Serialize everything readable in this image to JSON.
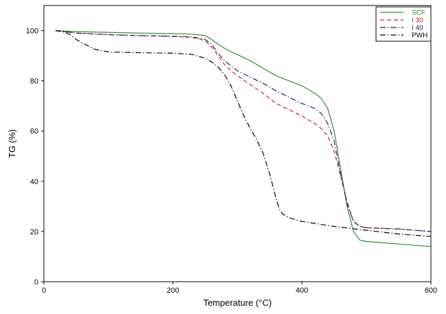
{
  "chart_data": {
    "type": "line",
    "title": "",
    "xlabel": "Temperature (°C)",
    "ylabel": "TG (%)",
    "xlim": [
      0,
      600
    ],
    "ylim": [
      0,
      110
    ],
    "xticks": [
      0,
      200,
      400,
      600
    ],
    "yticks": [
      0,
      20,
      40,
      60,
      80,
      100
    ],
    "grid": false,
    "legend_position": "top-right",
    "series": [
      {
        "name": "SCF",
        "color": "#2e8b2e",
        "dash": "solid",
        "label_color": "#2e8b2e",
        "x": [
          18,
          50,
          100,
          150,
          200,
          230,
          250,
          260,
          270,
          280,
          290,
          300,
          320,
          340,
          360,
          380,
          400,
          420,
          430,
          440,
          450,
          460,
          470,
          480,
          490,
          500,
          550,
          600
        ],
        "y": [
          100,
          99.6,
          99.3,
          99,
          98.8,
          98.6,
          98,
          96.5,
          94.5,
          93,
          91.5,
          90.5,
          88,
          85,
          82,
          80,
          78,
          75,
          73,
          69,
          60,
          45,
          30,
          20,
          16.5,
          16,
          15,
          14
        ]
      },
      {
        "name": "I 30",
        "color": "#cc2222",
        "dash": "dashed",
        "label_color": "#cc2222",
        "x": [
          18,
          50,
          100,
          150,
          200,
          230,
          250,
          260,
          270,
          280,
          290,
          300,
          320,
          340,
          360,
          380,
          400,
          420,
          430,
          440,
          450,
          460,
          470,
          480,
          490,
          500,
          550,
          600
        ],
        "y": [
          100,
          99,
          98.4,
          98,
          97.7,
          97.3,
          96,
          93.5,
          90,
          86.5,
          84,
          82,
          78.5,
          75,
          71,
          68.5,
          66,
          63,
          61,
          58,
          52,
          42,
          32,
          24,
          22,
          21.5,
          21,
          20
        ]
      },
      {
        "name": "I 40",
        "color": "#1c1c6e",
        "dash": "dashdot",
        "label_color": "#1c1c6e",
        "x": [
          18,
          50,
          100,
          150,
          200,
          230,
          250,
          260,
          270,
          280,
          290,
          300,
          320,
          340,
          360,
          380,
          400,
          420,
          430,
          440,
          450,
          460,
          470,
          480,
          490,
          500,
          550,
          600
        ],
        "y": [
          100,
          99,
          98.4,
          98,
          97.8,
          97.5,
          96.5,
          94.5,
          91,
          88,
          86,
          84,
          81.5,
          79,
          76,
          73.5,
          71,
          69,
          67,
          63,
          56,
          43,
          31,
          24,
          22,
          21.5,
          21,
          20
        ]
      },
      {
        "name": "PWH",
        "color": "#000000",
        "dash": "dashdot",
        "label_color": "#000000",
        "x": [
          18,
          30,
          40,
          50,
          60,
          80,
          100,
          150,
          200,
          230,
          250,
          260,
          270,
          280,
          290,
          300,
          310,
          320,
          330,
          340,
          350,
          355,
          360,
          365,
          370,
          380,
          400,
          450,
          500,
          550,
          600
        ],
        "y": [
          100,
          99.5,
          98.5,
          96.5,
          95,
          92.5,
          91.5,
          91.2,
          91,
          90.5,
          89,
          87.5,
          85.5,
          82.5,
          78,
          72,
          66,
          61,
          56.5,
          51,
          43,
          38,
          33,
          29,
          27,
          25.5,
          24,
          22,
          20.5,
          19,
          18
        ]
      }
    ]
  }
}
